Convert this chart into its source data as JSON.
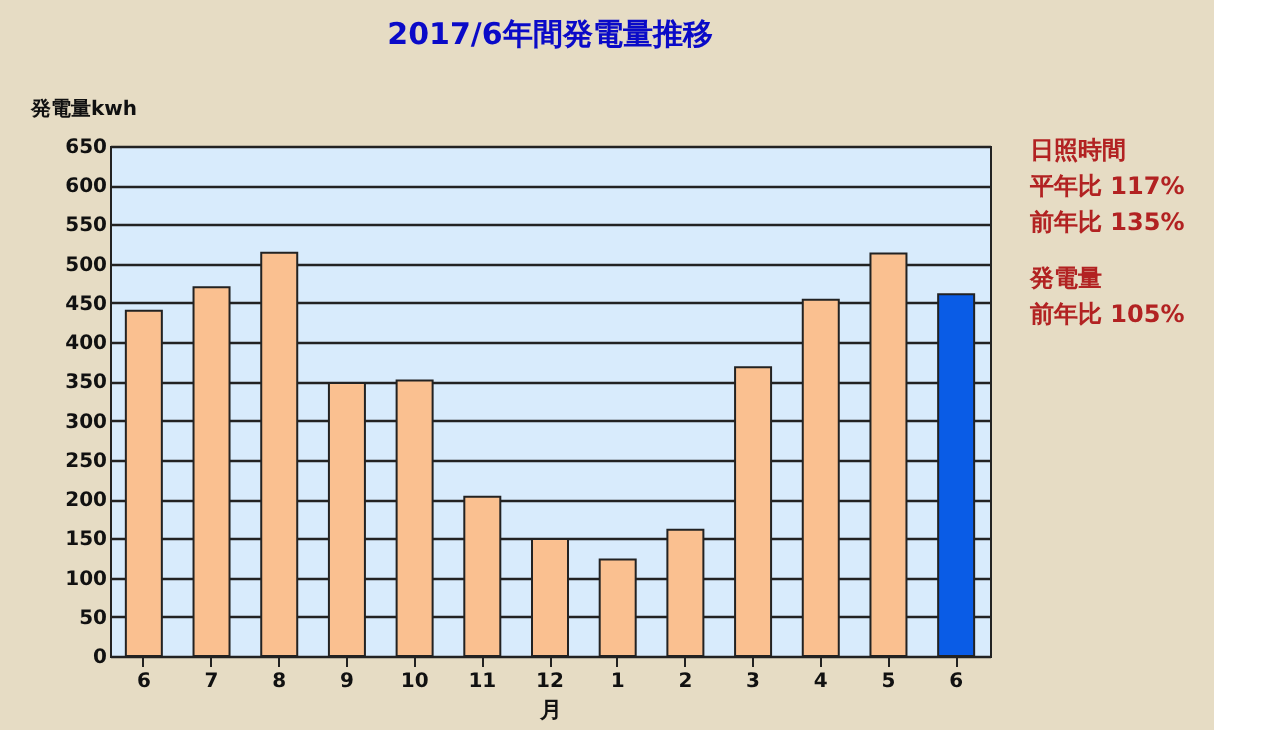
{
  "chart_data": {
    "type": "bar",
    "title": "2017/6年間発電量推移",
    "xlabel": "月",
    "ylabel": "発電量kwh",
    "categories": [
      "6",
      "7",
      "8",
      "9",
      "10",
      "11",
      "12",
      "1",
      "2",
      "3",
      "4",
      "5",
      "6"
    ],
    "values": [
      440,
      470,
      514,
      348,
      351,
      203,
      149,
      123,
      161,
      368,
      454,
      513,
      461
    ],
    "colors": [
      "#fac090",
      "#fac090",
      "#fac090",
      "#fac090",
      "#fac090",
      "#fac090",
      "#fac090",
      "#fac090",
      "#fac090",
      "#fac090",
      "#fac090",
      "#fac090",
      "#0a5ce6"
    ],
    "ylim": [
      0,
      650
    ],
    "yticks": [
      0,
      50,
      100,
      150,
      200,
      250,
      300,
      350,
      400,
      450,
      500,
      550,
      600,
      650
    ],
    "grid": "y",
    "annotations": [
      "日照時間",
      "平年比  117%",
      "前年比  135%",
      "発電量",
      "前年比  105%"
    ]
  }
}
